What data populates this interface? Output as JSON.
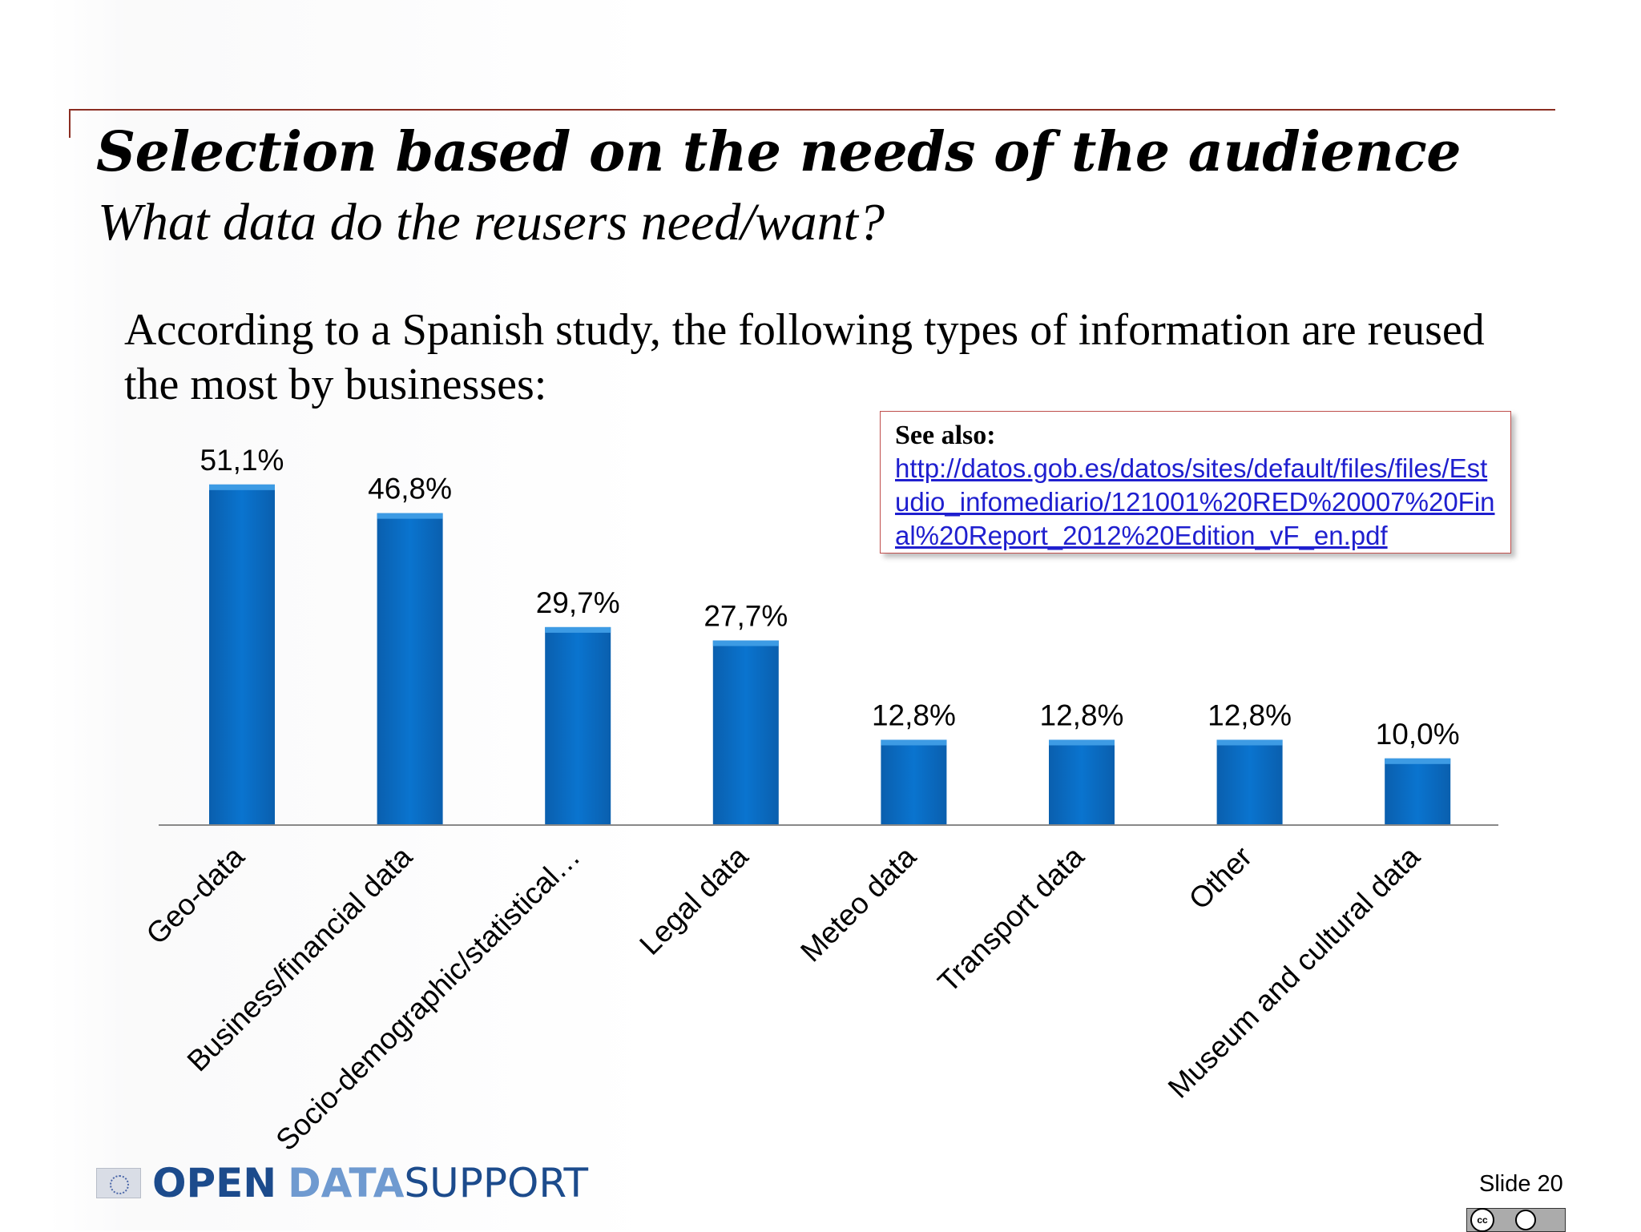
{
  "slide": {
    "title": "Selection based on the needs of the audience",
    "subtitle": "What data do the reusers need/want?",
    "intro": "According to a Spanish study, the following types of information are reused the most by businesses:",
    "slide_number": "Slide 20"
  },
  "see_also": {
    "title": "See also:",
    "url": "http://datos.gob.es/datos/sites/default/files/files/Estudio_infomediario/121001%20RED%20007%20Final%20Report_2012%20Edition_vF_en.pdf"
  },
  "logo": {
    "open": "OPEN",
    "data": "DATA",
    "support": "SUPPORT"
  },
  "license": {
    "cc": "cc"
  },
  "colors": {
    "bar": "#0a70c8",
    "bar_top": "#3d9be4",
    "axis": "#888888",
    "frame": "#8b2d22"
  },
  "chart_data": {
    "type": "bar",
    "categories": [
      "Geo-data",
      "Business/financial data",
      "Socio-demographic/statistical…",
      "Legal data",
      "Meteo data",
      "Transport data",
      "Other",
      "Museum and cultural data"
    ],
    "values": [
      51.1,
      46.8,
      29.7,
      27.7,
      12.8,
      12.8,
      12.8,
      10.0
    ],
    "labels": [
      "51,1%",
      "46,8%",
      "29,7%",
      "27,7%",
      "12,8%",
      "12,8%",
      "12,8%",
      "10,0%"
    ],
    "ylim": [
      0,
      55
    ],
    "title": "",
    "xlabel": "",
    "ylabel": "",
    "grid": false,
    "legend": "none"
  }
}
